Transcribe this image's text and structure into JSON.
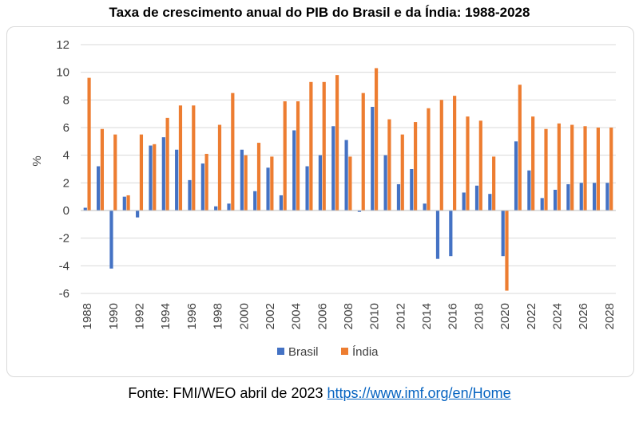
{
  "chart_data": {
    "type": "bar",
    "title": "Taxa de crescimento anual do PIB do Brasil e da Índia: 1988-2028",
    "xlabel": "",
    "ylabel": "%",
    "ylim": [
      -6,
      12
    ],
    "yticks": [
      12,
      10,
      8,
      6,
      4,
      2,
      0,
      -2,
      -4,
      -6
    ],
    "grid": true,
    "legend_position": "bottom",
    "categories": [
      1988,
      1989,
      1990,
      1991,
      1992,
      1993,
      1994,
      1995,
      1996,
      1997,
      1998,
      1999,
      2000,
      2001,
      2002,
      2003,
      2004,
      2005,
      2006,
      2007,
      2008,
      2009,
      2010,
      2011,
      2012,
      2013,
      2014,
      2015,
      2016,
      2017,
      2018,
      2019,
      2020,
      2021,
      2022,
      2023,
      2024,
      2025,
      2026,
      2027,
      2028
    ],
    "xtick_labels": [
      "1988",
      "1990",
      "1992",
      "1994",
      "1996",
      "1998",
      "2000",
      "2002",
      "2004",
      "2006",
      "2008",
      "2010",
      "2012",
      "2014",
      "2016",
      "2018",
      "2020",
      "2022",
      "2024",
      "2026",
      "2028"
    ],
    "series": [
      {
        "name": "Brasil",
        "color": "#4472c4",
        "values": [
          0.2,
          3.2,
          -4.2,
          1.0,
          -0.5,
          4.7,
          5.3,
          4.4,
          2.2,
          3.4,
          0.3,
          0.5,
          4.4,
          1.4,
          3.1,
          1.1,
          5.8,
          3.2,
          4.0,
          6.1,
          5.1,
          -0.1,
          7.5,
          4.0,
          1.9,
          3.0,
          0.5,
          -3.5,
          -3.3,
          1.3,
          1.8,
          1.2,
          -3.3,
          5.0,
          2.9,
          0.9,
          1.5,
          1.9,
          2.0,
          2.0,
          2.0
        ]
      },
      {
        "name": "Índia",
        "color": "#ed7d31",
        "values": [
          9.6,
          5.9,
          5.5,
          1.1,
          5.5,
          4.8,
          6.7,
          7.6,
          7.6,
          4.1,
          6.2,
          8.5,
          4.0,
          4.9,
          3.9,
          7.9,
          7.9,
          9.3,
          9.3,
          9.8,
          3.9,
          8.5,
          10.3,
          6.6,
          5.5,
          6.4,
          7.4,
          8.0,
          8.3,
          6.8,
          6.5,
          3.9,
          -5.8,
          9.1,
          6.8,
          5.9,
          6.3,
          6.2,
          6.1,
          6.0,
          6.0
        ]
      }
    ]
  },
  "source": {
    "text": "Fonte: FMI/WEO abril de 2023",
    "link_text": "https://www.imf.org/en/Home"
  }
}
